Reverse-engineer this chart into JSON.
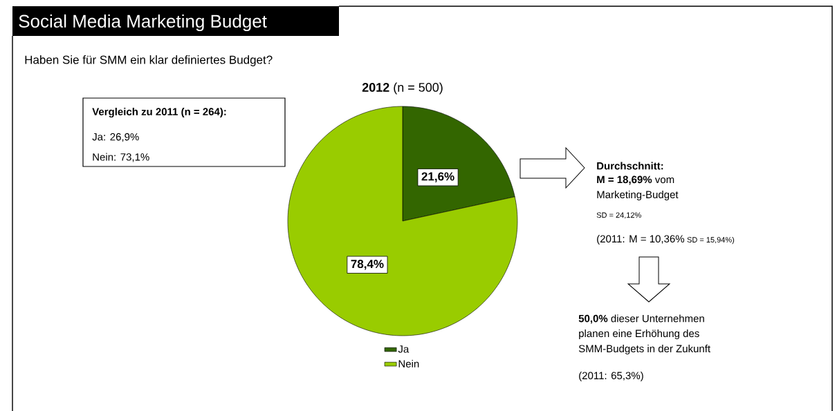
{
  "chart_data": {
    "type": "pie",
    "title": "Social Media Marketing Budget",
    "subtitle": "Haben Sie für SMM ein klar definiertes Budget?",
    "categories": [
      "Ja",
      "Nein"
    ],
    "values": [
      21.6,
      78.4
    ],
    "colors": [
      "#336600",
      "#99cc00"
    ],
    "value_labels": [
      "21,6%",
      "78,4%"
    ],
    "legend": "bottom",
    "annotations": [
      "**2012** (n = 500)",
      "Vergleich zu 2011 (n = 264):",
      "Ja: 26,9%",
      "Nein: 73,1%",
      "Durchschnitt:",
      "**M = 18,69%** vom",
      "Marketing-Budget",
      "SD = 24,12%",
      "(2011: M = 10,36%",
      "SD = 15,94%)",
      "**50,0%** dieser Unternehmen",
      "planen eine Erhöhung des",
      "SMM-Budgets in der Zukunft",
      "(2011: 65,3%)"
    ]
  }
}
